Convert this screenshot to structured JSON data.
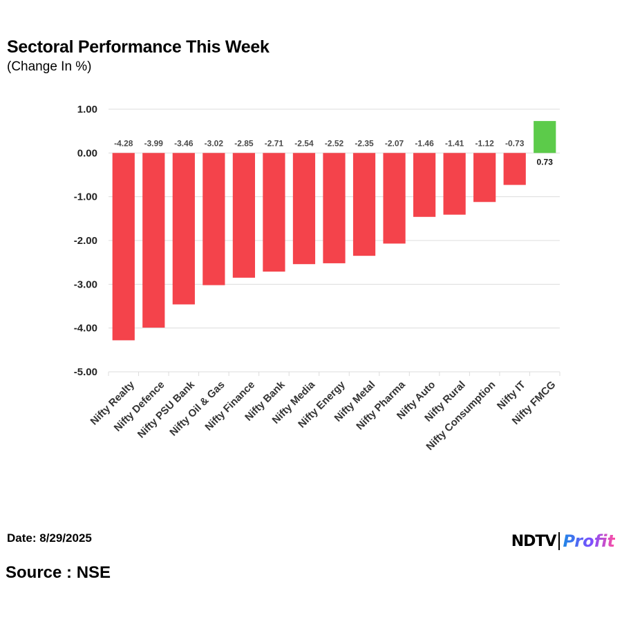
{
  "header": {
    "title": "Sectoral Performance This Week",
    "subtitle": "(Change In %)"
  },
  "footer": {
    "date": "Date: 8/29/2025",
    "source": "Source : NSE"
  },
  "logo": {
    "brand": "NDTV",
    "product": "Profit"
  },
  "colors": {
    "negative": "#f4434b",
    "positive": "#5ccb4a",
    "grid": "#dcdcdc"
  },
  "chart_data": {
    "type": "bar",
    "title": "Sectoral Performance This Week",
    "subtitle": "(Change In %)",
    "xlabel": "",
    "ylabel": "",
    "categories": [
      "Nifty Realty",
      "Nifty Defence",
      "Nifty PSU Bank",
      "Nifty Oil & Gas",
      "Nifty Finance",
      "Nifty Bank",
      "Nifty Media",
      "Nifty Energy",
      "Nifty Metal",
      "Nifty Pharma",
      "Nifty Auto",
      "Nifty Rural",
      "Nifty Consumption",
      "Nifty IT",
      "Nifty FMCG"
    ],
    "values": [
      -4.28,
      -3.99,
      -3.46,
      -3.02,
      -2.85,
      -2.71,
      -2.54,
      -2.52,
      -2.35,
      -2.07,
      -1.46,
      -1.41,
      -1.12,
      -0.73,
      0.73
    ],
    "value_labels": [
      "-4.28",
      "-3.99",
      "-3.46",
      "-3.02",
      "-2.85",
      "-2.71",
      "-2.54",
      "-2.52",
      "-2.35",
      "-2.07",
      "-1.46",
      "-1.41",
      "-1.12",
      "-0.73",
      "0.73"
    ],
    "ylim": [
      -5,
      1
    ],
    "yticks": [
      1,
      0,
      -1,
      -2,
      -3,
      -4,
      -5
    ],
    "ytick_labels": [
      "1.00",
      "0.00",
      "-1.00",
      "-2.00",
      "-3.00",
      "-4.00",
      "-5.00"
    ],
    "grid": true,
    "legend": "none"
  }
}
